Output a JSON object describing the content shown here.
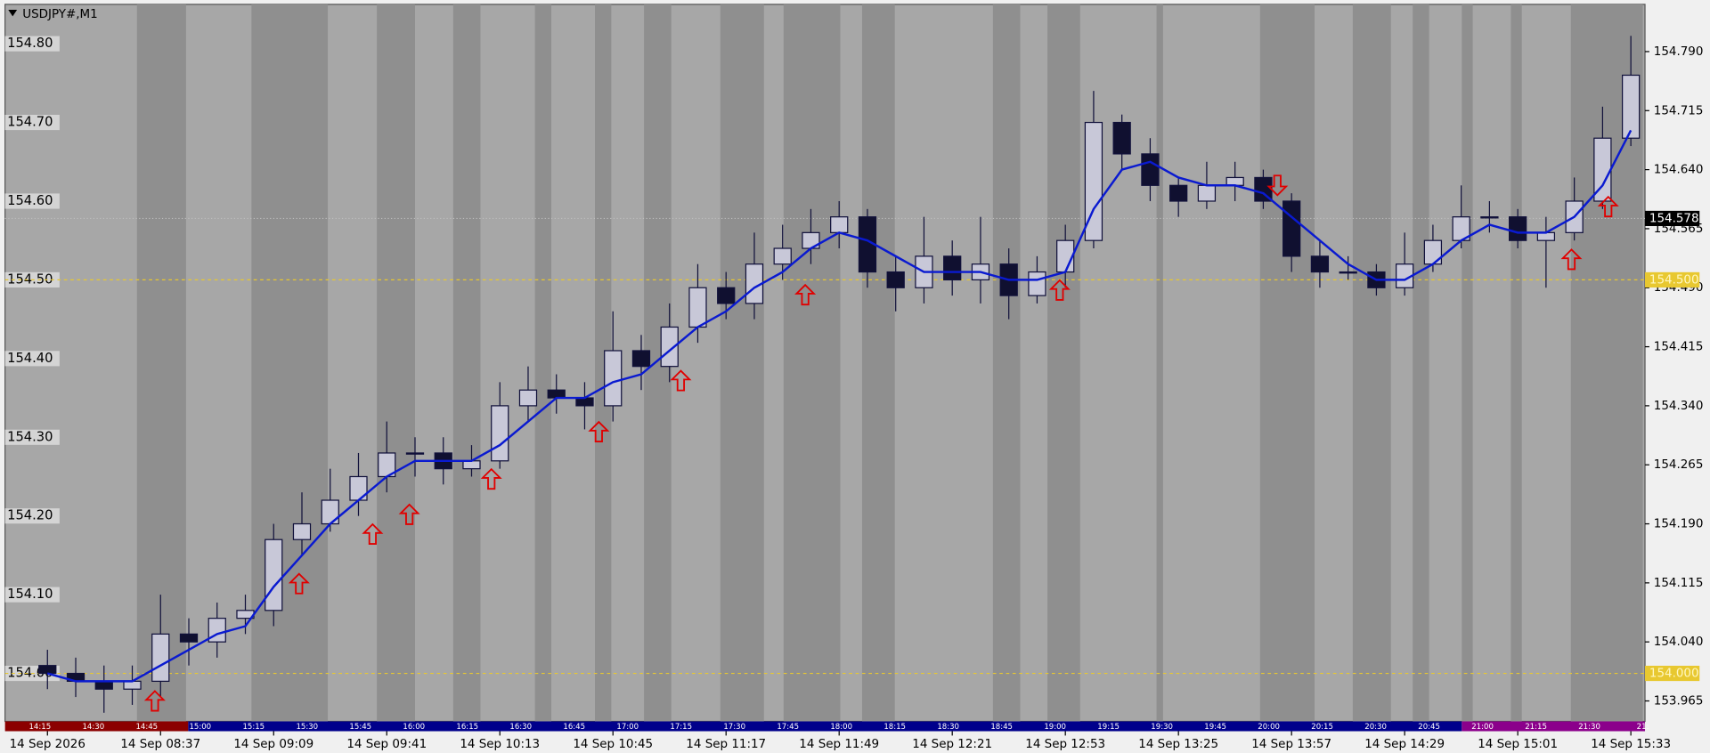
{
  "chart_data": {
    "type": "candlestick",
    "title": "USDJPY#,M1",
    "xlim": [
      -1.5,
      56.5
    ],
    "xticks": [
      {
        "value": 0,
        "label": "14 Sep 2026"
      },
      {
        "value": 4,
        "label": "14 Sep 08:37"
      },
      {
        "value": 8,
        "label": "14 Sep 09:09"
      },
      {
        "value": 12,
        "label": "14 Sep 09:41"
      },
      {
        "value": 16,
        "label": "14 Sep 10:13"
      },
      {
        "value": 20,
        "label": "14 Sep 10:45"
      },
      {
        "value": 24,
        "label": "14 Sep 11:17"
      },
      {
        "value": 28,
        "label": "14 Sep 11:49"
      },
      {
        "value": 32,
        "label": "14 Sep 12:21"
      },
      {
        "value": 36,
        "label": "14 Sep 12:53"
      },
      {
        "value": 40,
        "label": "14 Sep 13:25"
      },
      {
        "value": 44,
        "label": "14 Sep 13:57"
      },
      {
        "value": 48,
        "label": "14 Sep 14:29"
      },
      {
        "value": 52,
        "label": "14 Sep 15:01"
      },
      {
        "value": 56,
        "label": "14 Sep 15:33"
      }
    ],
    "ylim": [
      153.939,
      154.85
    ],
    "yticks": [
      {
        "value": 154.79,
        "label": "154.790"
      },
      154.715,
      {
        "value": 154.64,
        "label": "154.640"
      },
      154.565,
      {
        "value": 154.49,
        "label": "154.490"
      },
      154.415,
      {
        "value": 154.34,
        "label": "154.340"
      },
      154.265,
      {
        "value": 154.19,
        "label": "154.190"
      },
      154.115,
      {
        "value": 154.04,
        "label": "154.040"
      },
      153.965
    ],
    "y_left_ticks": [
      {
        "value": 154.8,
        "label": "154.80"
      },
      {
        "value": 154.7,
        "label": "154.70"
      },
      {
        "value": 154.6,
        "label": "154.60"
      },
      {
        "value": 154.5,
        "label": "154.50"
      },
      {
        "value": 154.4,
        "label": "154.40"
      },
      {
        "value": 154.3,
        "label": "154.30"
      },
      {
        "value": 154.2,
        "label": "154.20"
      },
      {
        "value": 154.1,
        "label": "154.10"
      },
      {
        "value": 154.0,
        "label": "154.00"
      }
    ],
    "levels": [
      {
        "value": 154.5,
        "label": "154.500"
      },
      {
        "value": 154.0,
        "label": "154.000"
      }
    ],
    "level_color": "#e8c830",
    "bid": {
      "value": 154.578,
      "label": "154.578"
    },
    "session_labels": [
      "14:15",
      "14:30",
      "14:45",
      "15:00",
      "15:15",
      "15:30",
      "15:45",
      "16:00",
      "16:15",
      "16:30",
      "16:45",
      "17:00",
      "17:15",
      "17:30",
      "17:45",
      "18:00",
      "18:15",
      "18:30",
      "18:45",
      "19:00",
      "19:15",
      "19:30",
      "19:45",
      "20:00",
      "20:15",
      "20:30",
      "20:45",
      "21:00",
      "21:15",
      "21:30",
      "21:"
    ],
    "open": [
      154.01,
      154.0,
      153.99,
      153.98,
      153.99,
      154.05,
      154.04,
      154.07,
      154.08,
      154.17,
      154.19,
      154.22,
      154.25,
      154.28,
      154.28,
      154.26,
      154.27,
      154.34,
      154.36,
      154.35,
      154.34,
      154.41,
      154.39,
      154.44,
      154.49,
      154.47,
      154.52,
      154.54,
      154.56,
      154.58,
      154.51,
      154.49,
      154.53,
      154.5,
      154.52,
      154.48,
      154.51,
      154.55,
      154.7,
      154.66,
      154.62,
      154.6,
      154.62,
      154.63,
      154.6,
      154.53,
      154.51,
      154.51,
      154.49,
      154.52,
      154.55,
      154.58,
      154.58,
      154.55,
      154.56,
      154.6,
      154.68
    ],
    "high": [
      154.03,
      154.02,
      154.01,
      154.01,
      154.1,
      154.07,
      154.09,
      154.1,
      154.19,
      154.23,
      154.26,
      154.28,
      154.32,
      154.3,
      154.3,
      154.29,
      154.37,
      154.39,
      154.38,
      154.37,
      154.46,
      154.43,
      154.47,
      154.52,
      154.51,
      154.56,
      154.57,
      154.59,
      154.6,
      154.59,
      154.53,
      154.58,
      154.55,
      154.58,
      154.54,
      154.53,
      154.57,
      154.74,
      154.71,
      154.68,
      154.63,
      154.65,
      154.65,
      154.64,
      154.61,
      154.55,
      154.53,
      154.52,
      154.56,
      154.57,
      154.62,
      154.6,
      154.59,
      154.58,
      154.63,
      154.72,
      154.81
    ],
    "low": [
      153.98,
      153.97,
      153.95,
      153.96,
      153.97,
      154.01,
      154.02,
      154.05,
      154.06,
      154.15,
      154.18,
      154.2,
      154.23,
      154.25,
      154.24,
      154.25,
      154.26,
      154.32,
      154.33,
      154.31,
      154.32,
      154.36,
      154.37,
      154.42,
      154.45,
      154.45,
      154.5,
      154.52,
      154.54,
      154.49,
      154.46,
      154.47,
      154.48,
      154.47,
      154.45,
      154.47,
      154.49,
      154.54,
      154.64,
      154.6,
      154.58,
      154.59,
      154.6,
      154.59,
      154.51,
      154.49,
      154.5,
      154.48,
      154.48,
      154.51,
      154.54,
      154.56,
      154.54,
      154.49,
      154.55,
      154.59,
      154.67
    ],
    "close": [
      154.0,
      153.99,
      153.98,
      153.99,
      154.05,
      154.04,
      154.07,
      154.08,
      154.17,
      154.19,
      154.22,
      154.25,
      154.28,
      154.28,
      154.26,
      154.27,
      154.34,
      154.36,
      154.35,
      154.34,
      154.41,
      154.39,
      154.44,
      154.49,
      154.47,
      154.52,
      154.54,
      154.56,
      154.58,
      154.51,
      154.49,
      154.53,
      154.5,
      154.52,
      154.48,
      154.51,
      154.55,
      154.7,
      154.66,
      154.62,
      154.6,
      154.62,
      154.63,
      154.6,
      154.53,
      154.51,
      154.51,
      154.49,
      154.52,
      154.55,
      154.58,
      154.58,
      154.55,
      154.56,
      154.6,
      154.68,
      154.76
    ],
    "up_color": "#c8c8d8",
    "down_color": "#101030",
    "wick_color": "#10103a",
    "ma": [
      154.0,
      153.99,
      153.99,
      153.99,
      154.01,
      154.03,
      154.05,
      154.06,
      154.11,
      154.15,
      154.19,
      154.22,
      154.25,
      154.27,
      154.27,
      154.27,
      154.29,
      154.32,
      154.35,
      154.35,
      154.37,
      154.38,
      154.41,
      154.44,
      154.46,
      154.49,
      154.51,
      154.54,
      154.56,
      154.55,
      154.53,
      154.51,
      154.51,
      154.51,
      154.5,
      154.5,
      154.51,
      154.59,
      154.64,
      154.65,
      154.63,
      154.62,
      154.62,
      154.61,
      154.58,
      154.55,
      154.52,
      154.5,
      154.5,
      154.52,
      154.55,
      154.57,
      154.56,
      154.56,
      154.58,
      154.62,
      154.69
    ],
    "ma_color": "#0a1ad0",
    "buy_signals": {
      "x": [
        3.8,
        8.9,
        11.5,
        12.8,
        15.7,
        19.5,
        22.4,
        26.8,
        35.8,
        53.9,
        55.2
      ],
      "price": [
        153.965,
        154.114,
        154.177,
        154.202,
        154.247,
        154.307,
        154.372,
        154.481,
        154.487,
        154.526,
        154.593
      ]
    },
    "sell_signals": {
      "x": [
        43.5
      ],
      "price": [
        154.62
      ]
    },
    "signal_color": "#e00000"
  }
}
